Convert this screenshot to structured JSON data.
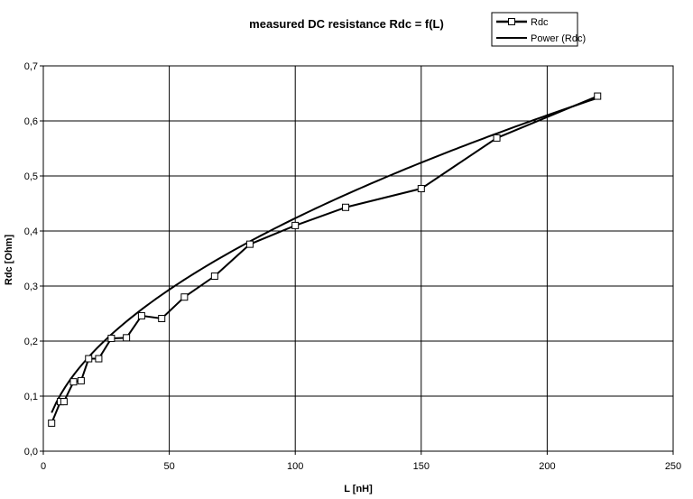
{
  "chart_data": {
    "type": "line",
    "title": "measured DC resistance Rdc = f(L)",
    "xlabel": "L [nH]",
    "ylabel": "Rdc [Ohm]",
    "xlim": [
      0,
      250
    ],
    "ylim": [
      0,
      0.7
    ],
    "xticks": [
      "0",
      "50",
      "100",
      "150",
      "200",
      "250"
    ],
    "yticks": [
      "0,0",
      "0,1",
      "0,2",
      "0,3",
      "0,4",
      "0,5",
      "0,6",
      "0,7"
    ],
    "grid": true,
    "legend_position": "top-right",
    "series": [
      {
        "name": "Rdc",
        "marker": "square",
        "x": [
          3.3,
          6.8,
          8.2,
          12,
          15,
          18,
          22,
          27,
          33,
          39,
          47,
          56,
          68,
          82,
          100,
          120,
          150,
          180,
          220
        ],
        "y": [
          0.051,
          0.09,
          0.09,
          0.126,
          0.128,
          0.168,
          0.168,
          0.205,
          0.206,
          0.246,
          0.241,
          0.28,
          0.318,
          0.376,
          0.41,
          0.443,
          0.477,
          0.569,
          0.645
        ]
      },
      {
        "name": "Power (Rdc)",
        "marker": "none",
        "fit": {
          "a": 0.0372,
          "b": 0.528
        }
      }
    ]
  }
}
